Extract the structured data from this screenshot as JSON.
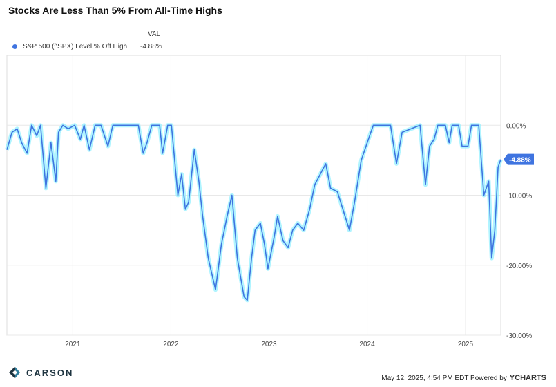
{
  "title": "Stocks Are Less Than 5% From All-Time Highs",
  "legend": {
    "column_header": "VAL",
    "entries": [
      {
        "name": "S&P 500 (^SPX) Level % Off High",
        "value": "-4.88%"
      }
    ]
  },
  "colors": {
    "line": "#3f74e0",
    "glow": "#8ff0ff",
    "grid": "#e8e8e8",
    "badge": "#3f74e0"
  },
  "footer": {
    "logo_text": "CARSON",
    "timestamp": "May 12, 2025, 4:54 PM EDT Powered by",
    "brand": "YCHARTS"
  },
  "chart_data": {
    "type": "line",
    "title": "Stocks Are Less Than 5% From All-Time Highs",
    "xlabel": "",
    "ylabel": "",
    "xlim": [
      "2020-05-01",
      "2025-05-12"
    ],
    "ylim": [
      -30,
      10
    ],
    "y_ticks": [
      0,
      -10,
      -20,
      -30
    ],
    "y_tick_labels": [
      "0.00%",
      "-10.00%",
      "-20.00%",
      "-30.00%"
    ],
    "x_ticks": [
      "2021-01-01",
      "2022-01-01",
      "2023-01-01",
      "2024-01-01",
      "2025-01-01"
    ],
    "x_tick_labels": [
      "2021",
      "2022",
      "2023",
      "2024",
      "2025"
    ],
    "grid": true,
    "legend_position": "top-left",
    "series": [
      {
        "name": "S&P 500 (^SPX) Level % Off High",
        "last_label": "-4.88%",
        "x": [
          "2020-05-01",
          "2020-05-20",
          "2020-06-08",
          "2020-06-25",
          "2020-07-15",
          "2020-08-01",
          "2020-08-20",
          "2020-09-03",
          "2020-09-23",
          "2020-10-12",
          "2020-10-30",
          "2020-11-09",
          "2020-11-25",
          "2020-12-15",
          "2021-01-08",
          "2021-01-29",
          "2021-02-12",
          "2021-03-04",
          "2021-03-25",
          "2021-04-16",
          "2021-05-12",
          "2021-05-30",
          "2021-06-18",
          "2021-07-15",
          "2021-08-10",
          "2021-09-02",
          "2021-09-20",
          "2021-10-04",
          "2021-10-22",
          "2021-11-20",
          "2021-12-01",
          "2021-12-20",
          "2022-01-03",
          "2022-01-27",
          "2022-02-10",
          "2022-02-24",
          "2022-03-08",
          "2022-03-29",
          "2022-04-15",
          "2022-04-29",
          "2022-05-20",
          "2022-06-16",
          "2022-07-08",
          "2022-07-29",
          "2022-08-16",
          "2022-09-05",
          "2022-09-30",
          "2022-10-12",
          "2022-10-28",
          "2022-11-10",
          "2022-11-30",
          "2022-12-15",
          "2022-12-28",
          "2023-01-20",
          "2023-02-02",
          "2023-02-22",
          "2023-03-13",
          "2023-03-30",
          "2023-04-18",
          "2023-05-10",
          "2023-06-01",
          "2023-06-20",
          "2023-07-31",
          "2023-08-18",
          "2023-09-12",
          "2023-10-27",
          "2023-11-15",
          "2023-12-10",
          "2024-01-10",
          "2024-01-24",
          "2024-03-28",
          "2024-04-19",
          "2024-05-10",
          "2024-07-16",
          "2024-08-05",
          "2024-08-20",
          "2024-09-06",
          "2024-09-20",
          "2024-10-18",
          "2024-11-01",
          "2024-11-12",
          "2024-12-06",
          "2024-12-19",
          "2025-01-10",
          "2025-01-23",
          "2025-02-19",
          "2025-03-10",
          "2025-03-28",
          "2025-04-08",
          "2025-04-20",
          "2025-05-02",
          "2025-05-12"
        ],
        "y": [
          -3.5,
          -1.0,
          -0.5,
          -2.5,
          -4.0,
          0,
          -1.5,
          0,
          -9.0,
          -2.5,
          -8.0,
          -1.0,
          0,
          -0.5,
          0,
          -2.0,
          0,
          -3.5,
          0,
          0,
          -3.0,
          0,
          0,
          0,
          0,
          0,
          -4.0,
          -2.5,
          0,
          0,
          -4.0,
          0,
          0,
          -10.0,
          -7.0,
          -12.0,
          -11.0,
          -3.5,
          -8.0,
          -13.0,
          -19.0,
          -23.5,
          -17.0,
          -13.0,
          -10.0,
          -19.0,
          -24.5,
          -25.0,
          -19.0,
          -15.0,
          -14.0,
          -17.0,
          -20.5,
          -16.0,
          -13.0,
          -16.5,
          -17.5,
          -15.0,
          -14.0,
          -15.0,
          -12.0,
          -8.5,
          -5.5,
          -9.0,
          -9.5,
          -15.0,
          -11.0,
          -5.0,
          -1.5,
          0,
          0,
          -5.5,
          -1.0,
          0,
          -8.5,
          -3.0,
          -2.0,
          0,
          0,
          -2.5,
          0,
          0,
          -3.0,
          -3.0,
          0,
          0,
          -10.0,
          -8.0,
          -19.0,
          -15.0,
          -6.0,
          -4.88
        ]
      }
    ]
  }
}
